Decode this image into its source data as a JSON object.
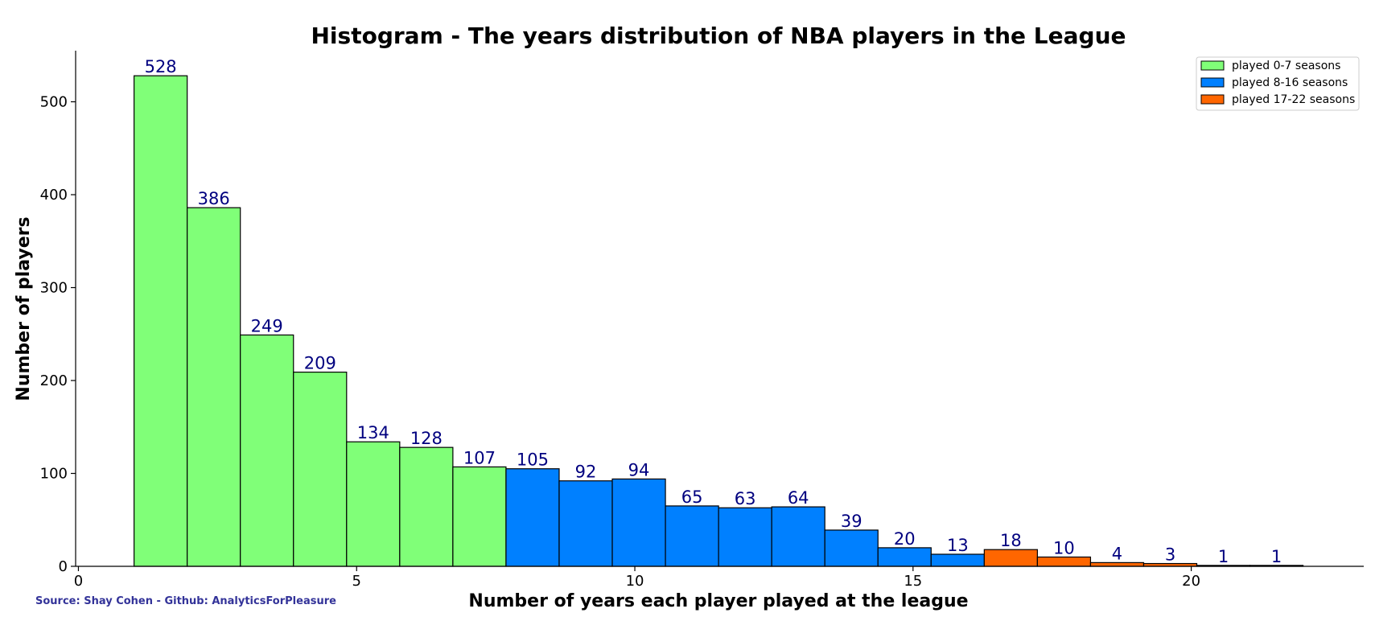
{
  "chart_data": {
    "type": "bar",
    "title": "Histogram - The years distribution of NBA players in the League",
    "xlabel": "Number of years each player played at the league",
    "ylabel": "Number of players",
    "xlim": [
      -0.05,
      23.1
    ],
    "ylim": [
      0,
      555
    ],
    "x_ticks": [
      0,
      5,
      10,
      15,
      20
    ],
    "y_ticks": [
      0,
      100,
      200,
      300,
      400,
      500
    ],
    "bin_start": 1.0,
    "bin_width": 0.955,
    "values": [
      528,
      386,
      249,
      209,
      134,
      128,
      107,
      105,
      92,
      94,
      65,
      63,
      64,
      39,
      20,
      13,
      18,
      10,
      4,
      3,
      1,
      1
    ],
    "bar_groups": [
      0,
      0,
      0,
      0,
      0,
      0,
      0,
      1,
      1,
      1,
      1,
      1,
      1,
      1,
      1,
      1,
      2,
      2,
      2,
      2,
      2,
      2
    ],
    "label_color": "#00007f",
    "legend_position": "top-right",
    "grid": false,
    "series": [
      {
        "name": "played 0-7 seasons",
        "color": "#80ff78"
      },
      {
        "name": "played 8-16 seasons",
        "color": "#0080ff"
      },
      {
        "name": "played 17-22 seasons",
        "color": "#ff6600"
      }
    ]
  },
  "source_text": "Source: Shay Cohen - Github: AnalyticsForPleasure",
  "source_color": "#333399"
}
